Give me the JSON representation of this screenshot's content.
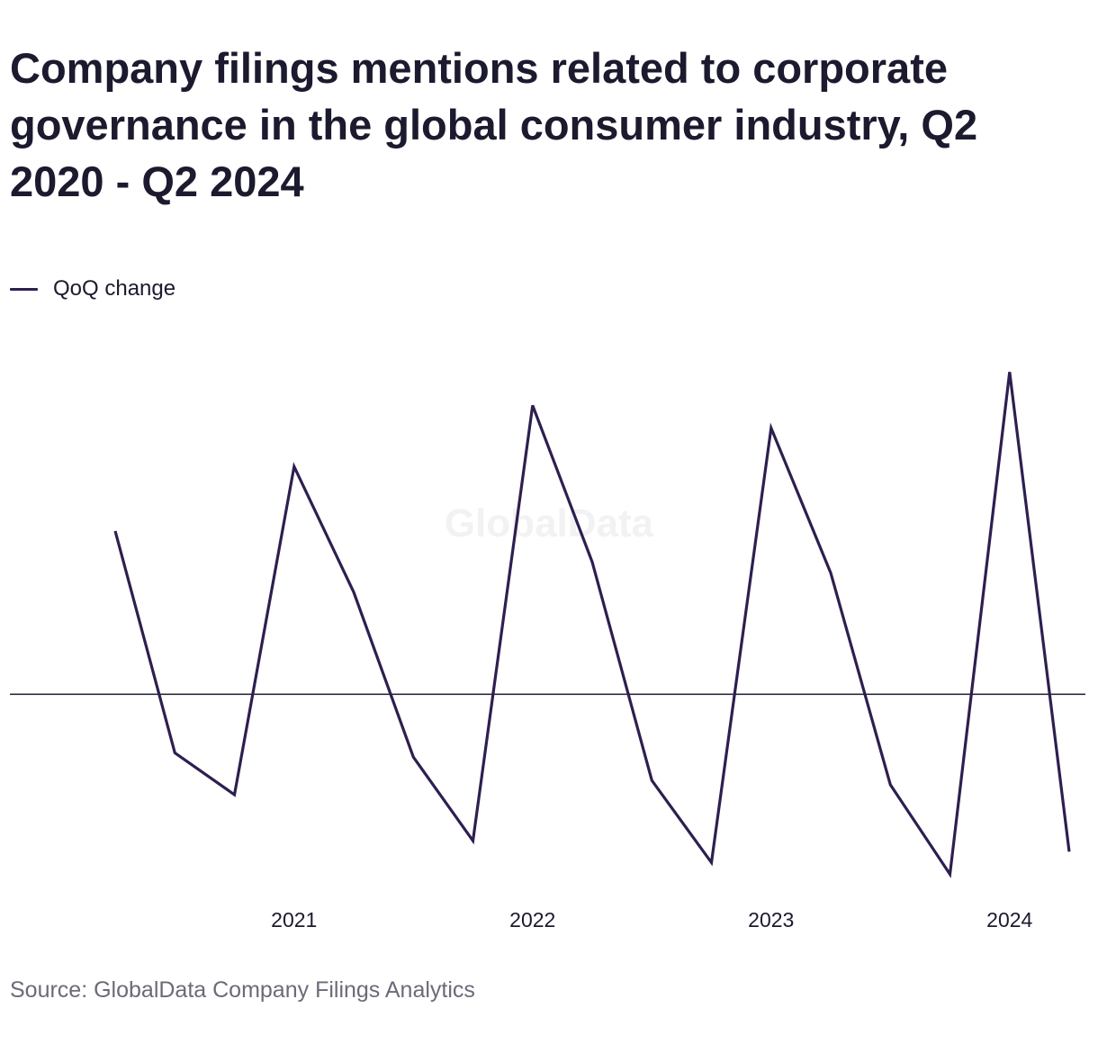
{
  "title": "Company filings mentions related to corporate governance in the global consumer industry, Q2 2020 - Q2 2024",
  "legend": {
    "label": "QoQ change"
  },
  "watermark": "GlobalData",
  "source": "Source: GlobalData Company Filings Analytics",
  "colors": {
    "line": "#2e1f4f",
    "zero_line": "#1b1a2e",
    "text": "#1b1a2e",
    "source_text": "#6b6b78"
  },
  "chart_data": {
    "type": "line",
    "title": "Company filings mentions related to corporate governance in the global consumer industry, Q2 2020 - Q2 2024",
    "xlabel": "",
    "ylabel": "",
    "x": [
      "Q2 2020",
      "Q3 2020",
      "Q4 2020",
      "Q1 2021",
      "Q2 2021",
      "Q3 2021",
      "Q4 2021",
      "Q1 2022",
      "Q2 2022",
      "Q3 2022",
      "Q4 2022",
      "Q1 2023",
      "Q2 2023",
      "Q3 2023",
      "Q4 2023",
      "Q1 2024",
      "Q2 2024"
    ],
    "x_tick_labels": [
      "2021",
      "2022",
      "2023",
      "2024"
    ],
    "x_tick_positions": [
      "Q1 2021",
      "Q1 2022",
      "Q1 2023",
      "Q1 2024"
    ],
    "series": [
      {
        "name": "QoQ change",
        "values": [
          195,
          -70,
          -120,
          272,
          122,
          -75,
          -175,
          345,
          158,
          -103,
          -201,
          318,
          145,
          -108,
          -215,
          385,
          -188
        ]
      }
    ],
    "ylim": [
      -235,
      410
    ],
    "zero_line": true,
    "grid": false,
    "y_axis_labels": false,
    "legend_position": "top-left"
  }
}
